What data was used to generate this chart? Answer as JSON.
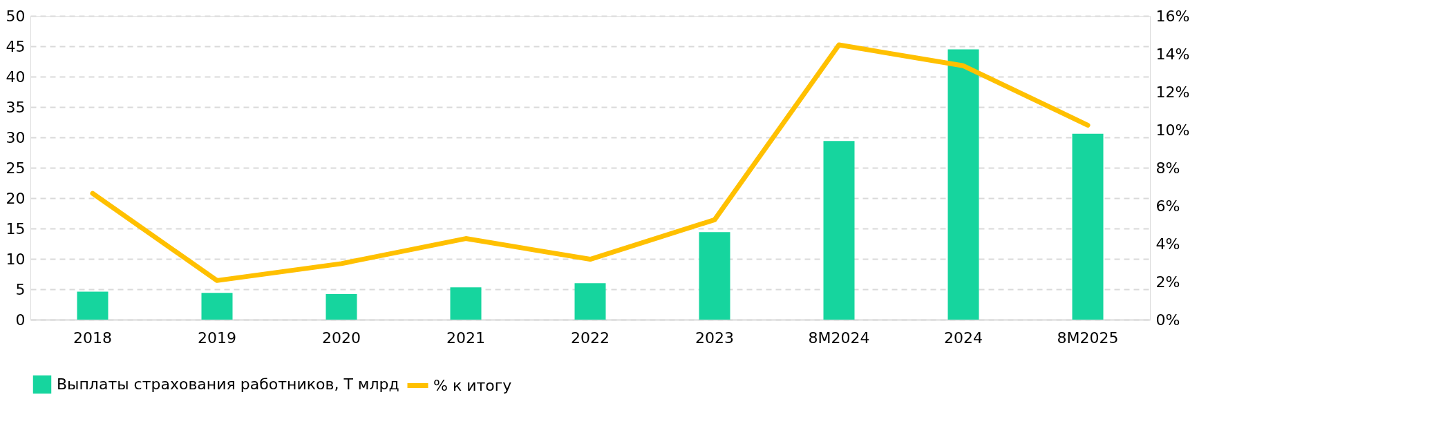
{
  "chart_data": {
    "type": "bar",
    "categories": [
      "2018",
      "2019",
      "2020",
      "2021",
      "2022",
      "2023",
      "8M2024",
      "2024",
      "8M2025"
    ],
    "series": [
      {
        "name": "Выплаты страхования работников, T млрд",
        "color": "#16d59e",
        "values": [
          4.6,
          4.4,
          4.2,
          5.3,
          6.0,
          14.4,
          29.4,
          44.5,
          30.6
        ]
      },
      {
        "name": "% к итогу",
        "color": "#ffc000",
        "type": "line",
        "axis": "y2",
        "values": [
          6.65,
          2.06,
          2.95,
          4.27,
          3.18,
          5.26,
          14.47,
          13.37,
          10.24
        ]
      }
    ],
    "ylim": [
      0,
      50
    ],
    "yticks": [
      0,
      5,
      10,
      15,
      20,
      25,
      30,
      35,
      40,
      45,
      50
    ],
    "y2lim": [
      0,
      16
    ],
    "y2ticks": [
      {
        "value": 0,
        "label": "0%"
      },
      {
        "value": 2,
        "label": "2%"
      },
      {
        "value": 4,
        "label": "4%"
      },
      {
        "value": 6,
        "label": "6%"
      },
      {
        "value": 8,
        "label": "8%"
      },
      {
        "value": 10,
        "label": "10%"
      },
      {
        "value": 12,
        "label": "12%"
      },
      {
        "value": 14,
        "label": "14%"
      },
      {
        "value": 16,
        "label": "16%"
      }
    ],
    "grid": "y",
    "legend": "bottom",
    "marker": "none",
    "line_style": "solid"
  }
}
